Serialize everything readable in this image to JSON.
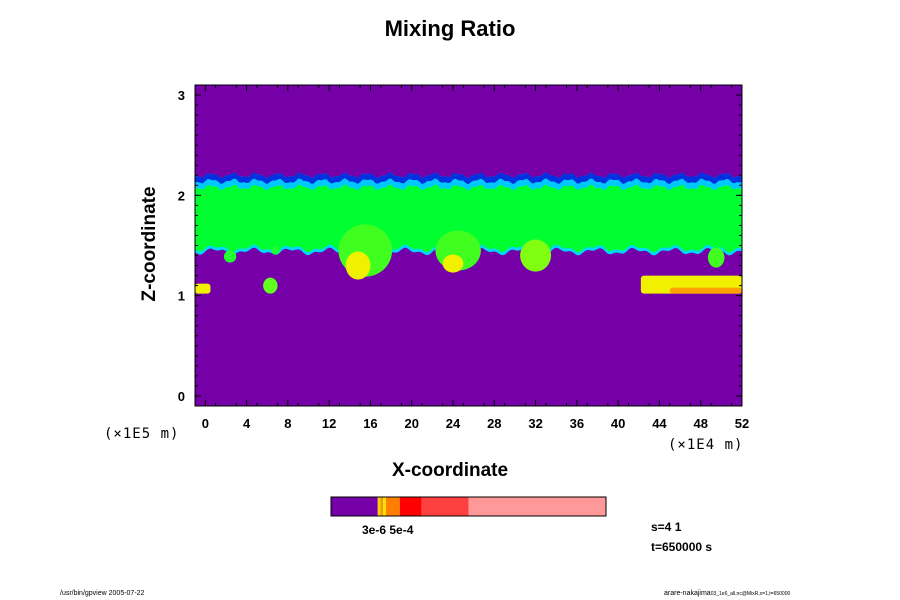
{
  "chart_data": {
    "type": "heatmap",
    "title": "Mixing Ratio",
    "xlabel": "X-coordinate",
    "ylabel": "Z-coordinate",
    "x_unit": "(×1E4 m)",
    "y_unit": "(×1E5 m)",
    "xlim": [
      -1,
      52
    ],
    "ylim": [
      -0.1,
      3.1
    ],
    "x_ticks": [
      "0",
      "4",
      "8",
      "12",
      "16",
      "20",
      "24",
      "28",
      "32",
      "36",
      "40",
      "44",
      "48",
      "52"
    ],
    "y_ticks": [
      "0",
      "1",
      "2",
      "3"
    ],
    "background_color": "#7500a8",
    "layer": {
      "z_top": 2.18,
      "z_bottom_typical": 1.47,
      "top_edge_color": "#0030e0",
      "top_band_color": "#00c8ff",
      "core_color": "#00ff30",
      "bottom_edge_color": "#00d8ff"
    },
    "plumes": [
      {
        "x": 15.5,
        "z": 1.45,
        "x_half": 2.6,
        "z_half": 0.26,
        "color": "#40ff20"
      },
      {
        "x": 14.8,
        "z": 1.3,
        "x_half": 1.2,
        "z_half": 0.14,
        "color": "#f0f000"
      },
      {
        "x": 24.5,
        "z": 1.45,
        "x_half": 2.2,
        "z_half": 0.2,
        "color": "#40ff20"
      },
      {
        "x": 24.0,
        "z": 1.32,
        "x_half": 1.0,
        "z_half": 0.09,
        "color": "#f0f000"
      },
      {
        "x": 32.0,
        "z": 1.4,
        "x_half": 1.5,
        "z_half": 0.16,
        "color": "#80ff10"
      },
      {
        "x": 49.5,
        "z": 1.38,
        "x_half": 0.8,
        "z_half": 0.1,
        "color": "#40ff20"
      },
      {
        "x": 6.3,
        "z": 1.1,
        "x_half": 0.7,
        "z_half": 0.08,
        "color": "#60ff20"
      },
      {
        "x": 2.4,
        "z": 1.39,
        "x_half": 0.6,
        "z_half": 0.06,
        "color": "#20ff30"
      },
      {
        "x": 6.8,
        "z": 1.45,
        "x_half": 0.4,
        "z_half": 0.04,
        "color": "#20ff30"
      }
    ],
    "low_patches": [
      {
        "x0": -1,
        "x1": 0.5,
        "z0": 1.02,
        "z1": 1.12,
        "color": "#f0f000"
      },
      {
        "x0": 42.2,
        "x1": 52,
        "z0": 1.02,
        "z1": 1.2,
        "color": "#f0f000"
      },
      {
        "x0": 45.0,
        "x1": 52,
        "z0": 1.02,
        "z1": 1.08,
        "color": "#ffa000"
      }
    ],
    "colorbar": {
      "boundaries": [
        0,
        0.17,
        0.18,
        0.19,
        0.2,
        0.25,
        0.33,
        0.5,
        1.0
      ],
      "colors": [
        "#7500a8",
        "#ffd000",
        "#e8a000",
        "#ffe000",
        "#ff8000",
        "#ff0000",
        "#ff4040",
        "#ff9898"
      ],
      "label": "3e-6 5e-4"
    }
  },
  "info": {
    "s_text": "s=4 1",
    "t_text": "t=650000 s"
  },
  "footer": {
    "left": "/usr/bin/gpview 2005-07-22",
    "right_main": "arare-nakajima",
    "right_sub": "03_1e6_all.nc@MixR,x=1,t=650000"
  }
}
